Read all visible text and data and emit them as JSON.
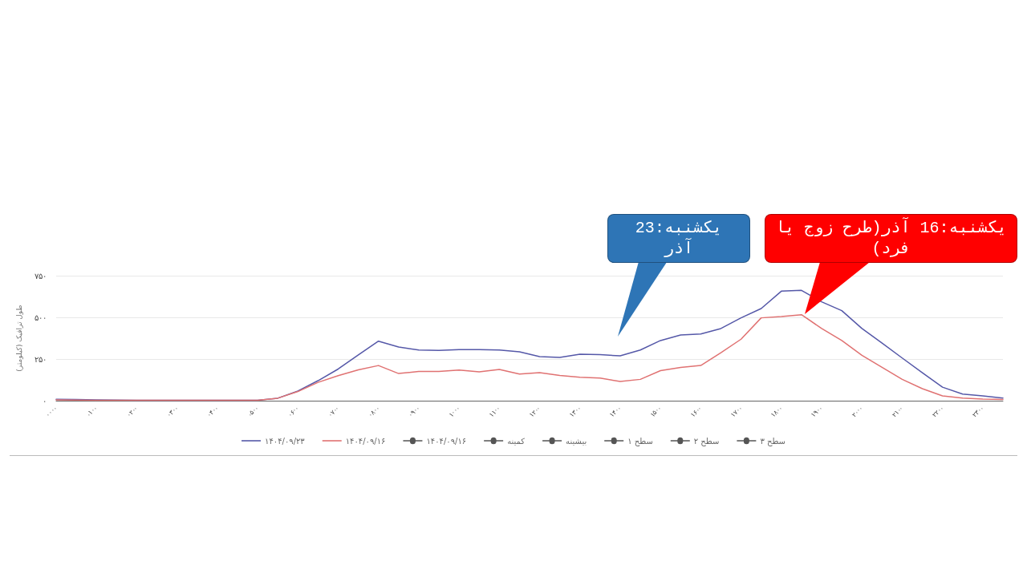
{
  "chart_data": {
    "type": "line",
    "ylabel": "طول ترافیک (کیلومتر)",
    "categories": [
      "۰۰۰۰",
      null,
      "۰۱۰۰",
      null,
      "۰۲۰۰",
      null,
      "۰۳۰۰",
      null,
      "۰۴۰۰",
      null,
      "۰۵۰۰",
      null,
      "۰۶۰۰",
      null,
      "۰۷۰۰",
      null,
      "۰۸۰۰",
      null,
      "۰۹۰۰",
      null,
      "۱۰۰۰",
      null,
      "۱۱۰۰",
      null,
      "۱۲۰۰",
      null,
      "۱۳۰۰",
      null,
      "۱۴۰۰",
      null,
      "۱۵۰۰",
      null,
      "۱۶۰۰",
      null,
      "۱۷۰۰",
      null,
      "۱۸۰۰",
      null,
      "۱۹۰۰",
      null,
      "۲۰۰۰",
      null,
      "۲۱۰۰",
      null,
      "۲۲۰۰",
      null,
      "۲۳۰۰",
      null
    ],
    "ylim": [
      0,
      750
    ],
    "yticks": [
      {
        "value": 0,
        "label": "۰"
      },
      {
        "value": 250,
        "label": "۲۵۰"
      },
      {
        "value": 500,
        "label": "۵۰۰"
      },
      {
        "value": 750,
        "label": "۷۵۰"
      }
    ],
    "grid": "y",
    "legend": "bottom",
    "marker": "none",
    "line_style": "solid",
    "series": [
      {
        "name": "۱۴۰۴/۰۹/۲۳",
        "color": "#5558a8",
        "values": [
          8,
          7,
          5,
          4,
          3,
          3,
          3,
          3,
          3,
          3,
          3,
          15,
          58,
          120,
          190,
          275,
          357,
          322,
          304,
          302,
          307,
          306,
          304,
          293,
          264,
          260,
          279,
          276,
          269,
          304,
          361,
          394,
          400,
          433,
          497,
          553,
          657,
          662,
          593,
          540,
          433,
          346,
          256,
          168,
          81,
          40,
          29,
          16
        ]
      },
      {
        "name": "۱۴۰۴/۰۹/۱۶",
        "color": "#e07272",
        "values": [
          5,
          4,
          3,
          3,
          2,
          2,
          2,
          2,
          2,
          2,
          2,
          15,
          55,
          110,
          150,
          185,
          211,
          163,
          176,
          176,
          184,
          173,
          188,
          160,
          168,
          152,
          141,
          136,
          115,
          128,
          180,
          200,
          211,
          288,
          369,
          497,
          505,
          516,
          433,
          361,
          272,
          200,
          128,
          72,
          29,
          16,
          10,
          7
        ]
      },
      {
        "name": "۱۴۰۴/۰۹/۱۶",
        "color": "#555555",
        "marker": "circle",
        "values": [
          null,
          null,
          null,
          null,
          null,
          null,
          null,
          null,
          null,
          null,
          null,
          null,
          null,
          null,
          null,
          null,
          null,
          null,
          null,
          null,
          null,
          null,
          null,
          null,
          null,
          null,
          null,
          null,
          null,
          null,
          null,
          null,
          null,
          null,
          null,
          null,
          null,
          null,
          null,
          null,
          null,
          null,
          null,
          null,
          null,
          null,
          null,
          null
        ]
      },
      {
        "name": "کمینه",
        "color": "#555555",
        "marker": "circle",
        "values": [
          null,
          null,
          null,
          null,
          null,
          null,
          null,
          null,
          null,
          null,
          null,
          null,
          null,
          null,
          null,
          null,
          null,
          null,
          null,
          null,
          null,
          null,
          null,
          null,
          null,
          null,
          null,
          null,
          null,
          null,
          null,
          null,
          null,
          null,
          null,
          null,
          null,
          null,
          null,
          null,
          null,
          null,
          null,
          null,
          null,
          null,
          null,
          null
        ]
      },
      {
        "name": "بیشینه",
        "color": "#555555",
        "marker": "circle",
        "values": [
          null,
          null,
          null,
          null,
          null,
          null,
          null,
          null,
          null,
          null,
          null,
          null,
          null,
          null,
          null,
          null,
          null,
          null,
          null,
          null,
          null,
          null,
          null,
          null,
          null,
          null,
          null,
          null,
          null,
          null,
          null,
          null,
          null,
          null,
          null,
          null,
          null,
          null,
          null,
          null,
          null,
          null,
          null,
          null,
          null,
          null,
          null,
          null
        ]
      },
      {
        "name": "سطح ۱",
        "color": "#555555",
        "marker": "circle",
        "values": [
          null,
          null,
          null,
          null,
          null,
          null,
          null,
          null,
          null,
          null,
          null,
          null,
          null,
          null,
          null,
          null,
          null,
          null,
          null,
          null,
          null,
          null,
          null,
          null,
          null,
          null,
          null,
          null,
          null,
          null,
          null,
          null,
          null,
          null,
          null,
          null,
          null,
          null,
          null,
          null,
          null,
          null,
          null,
          null,
          null,
          null,
          null,
          null
        ]
      },
      {
        "name": "سطح ۲",
        "color": "#555555",
        "marker": "circle",
        "values": [
          null,
          null,
          null,
          null,
          null,
          null,
          null,
          null,
          null,
          null,
          null,
          null,
          null,
          null,
          null,
          null,
          null,
          null,
          null,
          null,
          null,
          null,
          null,
          null,
          null,
          null,
          null,
          null,
          null,
          null,
          null,
          null,
          null,
          null,
          null,
          null,
          null,
          null,
          null,
          null,
          null,
          null,
          null,
          null,
          null,
          null,
          null,
          null
        ]
      },
      {
        "name": "سطح ۳",
        "color": "#555555",
        "marker": "circle",
        "values": [
          null,
          null,
          null,
          null,
          null,
          null,
          null,
          null,
          null,
          null,
          null,
          null,
          null,
          null,
          null,
          null,
          null,
          null,
          null,
          null,
          null,
          null,
          null,
          null,
          null,
          null,
          null,
          null,
          null,
          null,
          null,
          null,
          null,
          null,
          null,
          null,
          null,
          null,
          null,
          null,
          null,
          null,
          null,
          null,
          null,
          null,
          null,
          null
        ]
      }
    ],
    "annotations": [
      "یکشنبه:23 آذر",
      "یکشنبه:16 آذر(طرح زوج یا فرد)"
    ]
  }
}
